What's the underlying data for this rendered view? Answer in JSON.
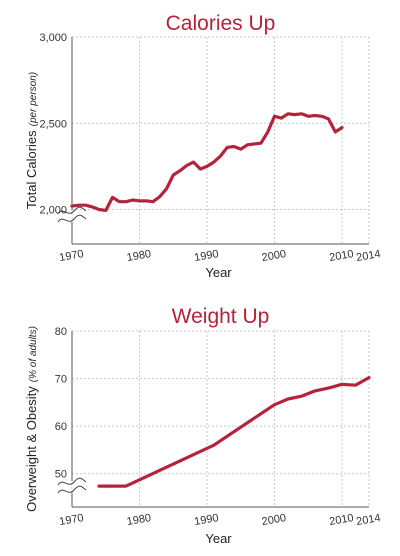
{
  "colors": {
    "line": "#b5233a",
    "title": "#b5233a"
  },
  "chart_data": [
    {
      "type": "line",
      "title": "Calories Up",
      "xlabel": "Year",
      "ylabel": "Total Calories",
      "ylabel_sub": "(per person)",
      "xlim": [
        1970,
        2014
      ],
      "ylim": [
        1800,
        3000
      ],
      "grid": true,
      "axis_break": true,
      "x_ticks": [
        {
          "value": 1970,
          "label": "1970"
        },
        {
          "value": 1980,
          "label": "1980"
        },
        {
          "value": 1990,
          "label": "1990"
        },
        {
          "value": 2000,
          "label": "2000"
        },
        {
          "value": 2010,
          "label": "2010"
        },
        {
          "value": 2014,
          "label": "2014"
        }
      ],
      "y_ticks": [
        {
          "value": 2000,
          "label": "2,000"
        },
        {
          "value": 2500,
          "label": "2,500"
        },
        {
          "value": 3000,
          "label": "3,000"
        }
      ],
      "series": [
        {
          "x": [
            1970,
            1971,
            1972,
            1973,
            1974,
            1975,
            1976,
            1977,
            1978,
            1979,
            1980,
            1981,
            1982,
            1983,
            1984,
            1985,
            1986,
            1987,
            1988,
            1989,
            1990,
            1991,
            1992,
            1993,
            1994,
            1995,
            1996,
            1997,
            1998,
            1999,
            2000,
            2001,
            2002,
            2003,
            2004,
            2005,
            2006,
            2007,
            2008,
            2009,
            2010
          ],
          "y": [
            2020,
            2025,
            2025,
            2015,
            2000,
            1995,
            2070,
            2045,
            2045,
            2055,
            2050,
            2050,
            2045,
            2075,
            2120,
            2200,
            2225,
            2255,
            2275,
            2235,
            2250,
            2275,
            2310,
            2360,
            2365,
            2350,
            2375,
            2380,
            2385,
            2450,
            2540,
            2530,
            2555,
            2550,
            2555,
            2540,
            2545,
            2540,
            2525,
            2450,
            2475
          ]
        }
      ]
    },
    {
      "type": "line",
      "title": "Weight Up",
      "xlabel": "Year",
      "ylabel": "Overweight & Obesity",
      "ylabel_sub": "(% of adults)",
      "xlim": [
        1970,
        2014
      ],
      "ylim": [
        43,
        80
      ],
      "grid": true,
      "axis_break": true,
      "x_ticks": [
        {
          "value": 1970,
          "label": "1970"
        },
        {
          "value": 1980,
          "label": "1980"
        },
        {
          "value": 1990,
          "label": "1990"
        },
        {
          "value": 2000,
          "label": "2000"
        },
        {
          "value": 2010,
          "label": "2010"
        },
        {
          "value": 2014,
          "label": "2014"
        }
      ],
      "y_ticks": [
        {
          "value": 50,
          "label": "50"
        },
        {
          "value": 60,
          "label": "60"
        },
        {
          "value": 70,
          "label": "70"
        },
        {
          "value": 80,
          "label": "80"
        }
      ],
      "series": [
        {
          "x": [
            1974,
            1978,
            1991,
            2000,
            2002,
            2004,
            2006,
            2008,
            2010,
            2012,
            2014
          ],
          "y": [
            47.4,
            47.4,
            56,
            64.5,
            65.7,
            66.3,
            67.4,
            68,
            68.8,
            68.6,
            70.2
          ]
        }
      ]
    }
  ]
}
